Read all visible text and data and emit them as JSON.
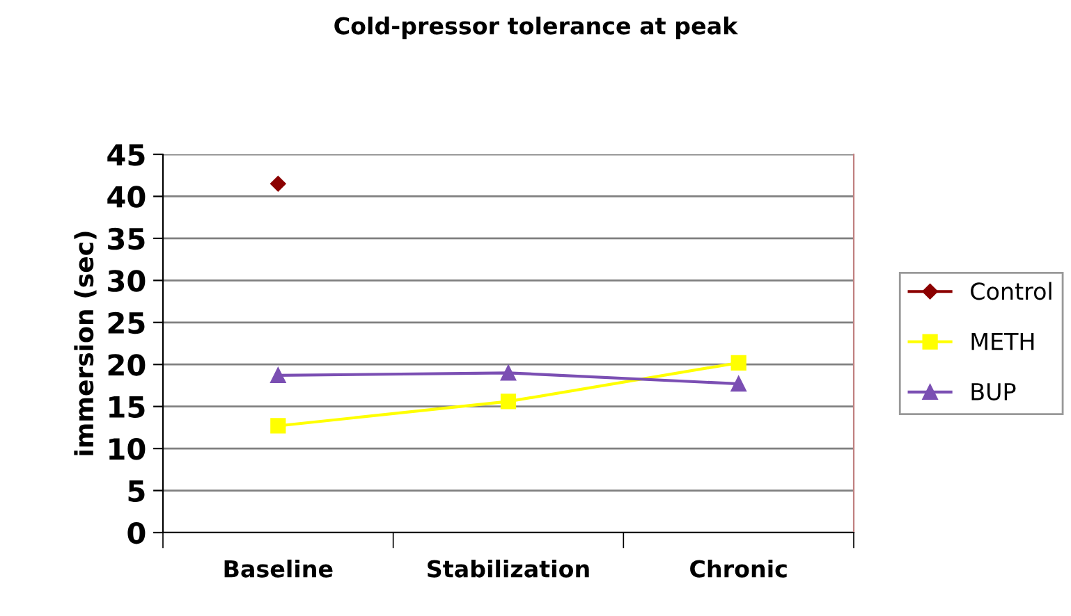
{
  "chart_data": {
    "type": "line",
    "title": "Cold-pressor tolerance at peak",
    "ylabel": "immersion (sec)",
    "categories": [
      "Baseline",
      "Stabilization",
      "Chronic"
    ],
    "series": [
      {
        "name": "Control",
        "color": "#8b0000",
        "marker": "diamond",
        "values": [
          41.5,
          null,
          null
        ]
      },
      {
        "name": "METH",
        "color": "#ffff00",
        "marker": "square",
        "values": [
          12.7,
          15.6,
          20.2
        ]
      },
      {
        "name": "BUP",
        "color": "#7b4fb3",
        "marker": "triangle",
        "values": [
          18.7,
          19.0,
          17.7
        ]
      }
    ],
    "ylim": [
      0,
      45
    ],
    "yticks": [
      0,
      5,
      10,
      15,
      20,
      25,
      30,
      35,
      40,
      45
    ],
    "grid": "y",
    "legend": "right"
  }
}
